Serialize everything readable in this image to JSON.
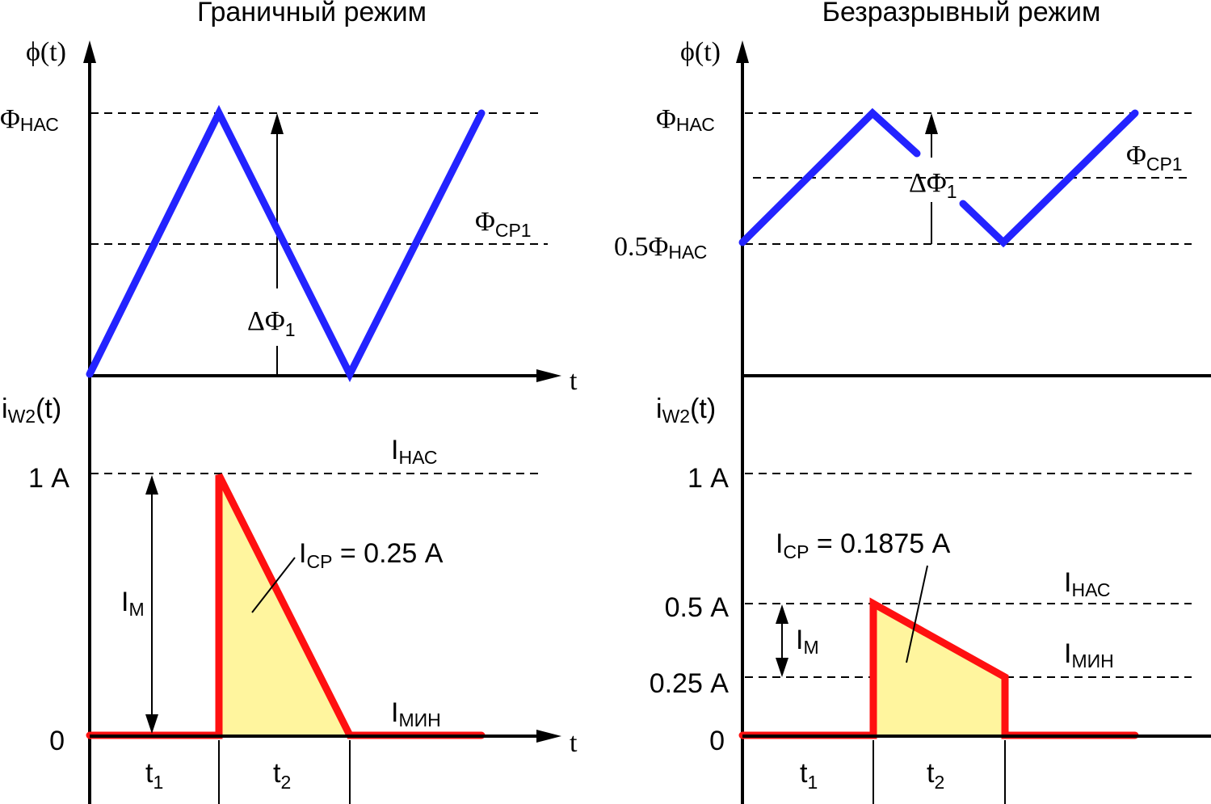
{
  "colors": {
    "flux": "#2323ff",
    "current": "#ff1010",
    "area_fill": "#fff59e"
  },
  "left": {
    "title": "Граничный режим",
    "phi_axis": "ϕ(t)",
    "t_axis": "t",
    "t_axis_bottom": "t",
    "phi_sat": {
      "main": "Φ",
      "sub": "НАС"
    },
    "phi_avg": {
      "main": "Φ",
      "sub": "СР1"
    },
    "delta_phi": {
      "main": "ΔΦ",
      "sub": "1"
    },
    "i_axis": {
      "main": "i",
      "sub": "W2",
      "tail": "(t)"
    },
    "y_1a": "1 А",
    "y_0": "0",
    "i_sat": {
      "main": "I",
      "sub": "НАС"
    },
    "i_min": {
      "main": "I",
      "sub": "МИН"
    },
    "i_m": {
      "main": "I",
      "sub": "М"
    },
    "i_avg": {
      "main": "I",
      "sub": "СР",
      "tail": " = 0.25 А"
    },
    "t1": {
      "main": "t",
      "sub": "1"
    },
    "t2": {
      "main": "t",
      "sub": "2"
    }
  },
  "right": {
    "title": "Безразрывный режим",
    "phi_axis": "ϕ(t)",
    "phi_sat": {
      "main": "Φ",
      "sub": "НАС"
    },
    "phi_avg": {
      "main": "Φ",
      "sub": "СР1"
    },
    "phi_half": {
      "main": "0.5Φ",
      "sub": "НАС"
    },
    "delta_phi": {
      "main": "ΔΦ",
      "sub": "1"
    },
    "i_axis": {
      "main": "i",
      "sub": "W2",
      "tail": "(t)"
    },
    "y_1a": "1 А",
    "y_05a": "0.5 А",
    "y_025a": "0.25 А",
    "y_0": "0",
    "i_avg": {
      "main": "I",
      "sub": "СР",
      "tail": " = 0.1875 А"
    },
    "i_sat": {
      "main": "I",
      "sub": "НАС"
    },
    "i_min": {
      "main": "I",
      "sub": "МИН"
    },
    "i_m": {
      "main": "I",
      "sub": "М"
    },
    "t1": {
      "main": "t",
      "sub": "1"
    },
    "t2": {
      "main": "t",
      "sub": "2"
    }
  }
}
